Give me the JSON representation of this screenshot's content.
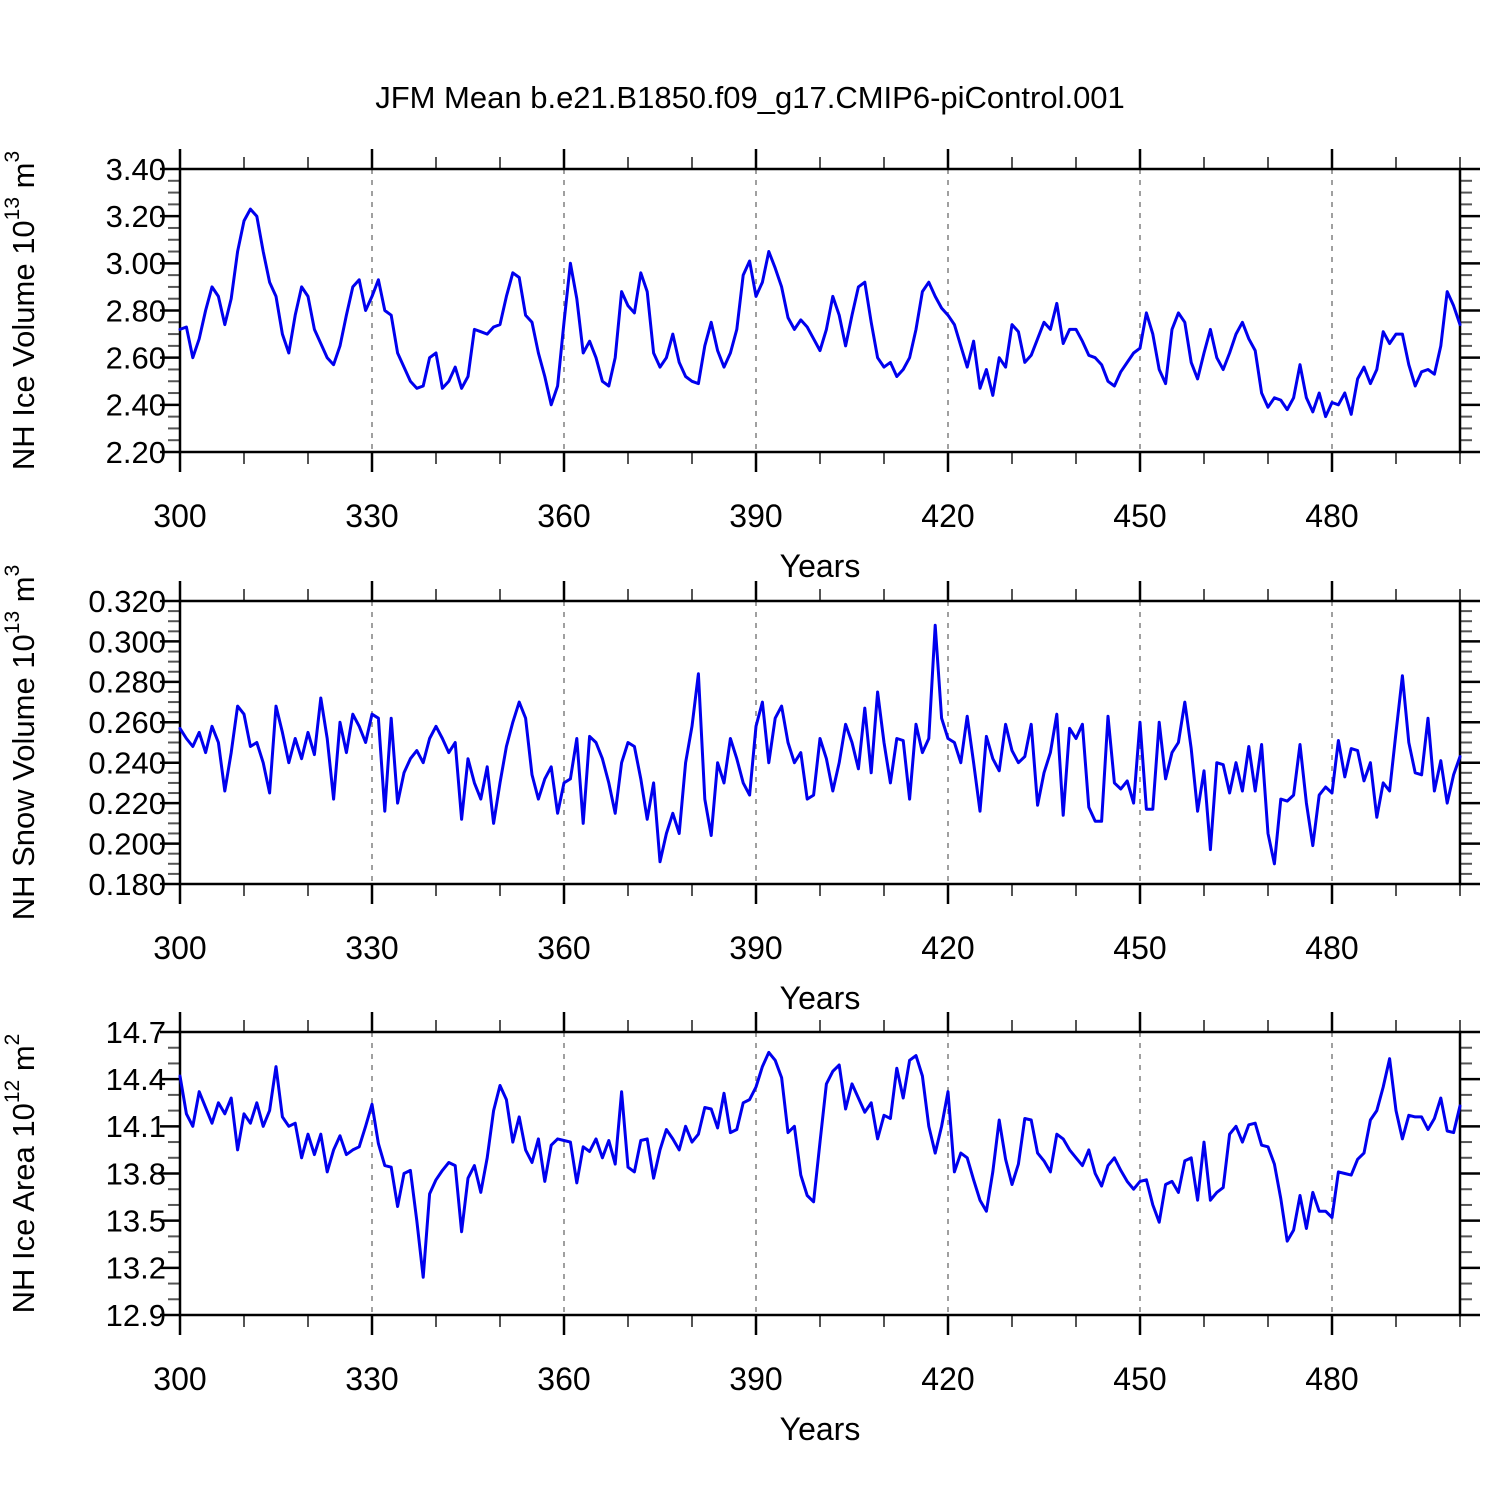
{
  "title": "JFM Mean b.e21.B1850.f09_g17.CMIP6-piControl.001",
  "line_color": "#0000ee",
  "frame_color": "#000000",
  "grid_color": "#808080",
  "minor_tick_color": "#555555",
  "axis": {
    "xlabel": "Years",
    "xlim": [
      300,
      500
    ],
    "x_major_ticks": [
      300,
      330,
      360,
      390,
      420,
      450,
      480
    ],
    "x_gridlines": [
      330,
      360,
      390,
      420,
      450,
      480
    ],
    "x_minor_step": 10
  },
  "chart_data": [
    {
      "type": "line",
      "ylabel_parts": [
        "NH Ice Volume 10",
        "13",
        " m",
        "3"
      ],
      "ylim": [
        2.2,
        3.4
      ],
      "ytick_step": 0.2,
      "ytick_labels": [
        "2.20",
        "2.40",
        "2.60",
        "2.80",
        "3.00",
        "3.20",
        "3.40"
      ],
      "y_minor_divisions": 4,
      "x_start": 300,
      "x_step": 1,
      "values": [
        2.72,
        2.73,
        2.6,
        2.68,
        2.8,
        2.9,
        2.86,
        2.74,
        2.85,
        3.05,
        3.18,
        3.23,
        3.2,
        3.05,
        2.92,
        2.86,
        2.7,
        2.62,
        2.78,
        2.9,
        2.86,
        2.72,
        2.66,
        2.6,
        2.57,
        2.65,
        2.78,
        2.9,
        2.93,
        2.8,
        2.86,
        2.93,
        2.8,
        2.78,
        2.62,
        2.56,
        2.5,
        2.47,
        2.48,
        2.6,
        2.62,
        2.47,
        2.5,
        2.56,
        2.47,
        2.52,
        2.72,
        2.71,
        2.7,
        2.73,
        2.74,
        2.86,
        2.96,
        2.94,
        2.78,
        2.75,
        2.62,
        2.52,
        2.4,
        2.48,
        2.75,
        3.0,
        2.85,
        2.62,
        2.67,
        2.6,
        2.5,
        2.48,
        2.6,
        2.88,
        2.82,
        2.79,
        2.96,
        2.88,
        2.62,
        2.56,
        2.6,
        2.7,
        2.58,
        2.52,
        2.5,
        2.49,
        2.65,
        2.75,
        2.63,
        2.56,
        2.62,
        2.72,
        2.95,
        3.01,
        2.86,
        2.92,
        3.05,
        2.98,
        2.9,
        2.77,
        2.72,
        2.76,
        2.73,
        2.68,
        2.63,
        2.72,
        2.86,
        2.78,
        2.65,
        2.78,
        2.9,
        2.92,
        2.75,
        2.6,
        2.56,
        2.58,
        2.52,
        2.55,
        2.6,
        2.72,
        2.88,
        2.92,
        2.86,
        2.81,
        2.78,
        2.74,
        2.65,
        2.56,
        2.67,
        2.47,
        2.55,
        2.44,
        2.6,
        2.56,
        2.74,
        2.71,
        2.58,
        2.61,
        2.68,
        2.75,
        2.72,
        2.83,
        2.66,
        2.72,
        2.72,
        2.67,
        2.61,
        2.6,
        2.57,
        2.5,
        2.48,
        2.54,
        2.58,
        2.62,
        2.64,
        2.79,
        2.7,
        2.55,
        2.49,
        2.72,
        2.79,
        2.75,
        2.58,
        2.51,
        2.62,
        2.72,
        2.6,
        2.55,
        2.62,
        2.7,
        2.75,
        2.68,
        2.63,
        2.45,
        2.39,
        2.43,
        2.42,
        2.38,
        2.43,
        2.57,
        2.43,
        2.37,
        2.45,
        2.35,
        2.41,
        2.4,
        2.45,
        2.36,
        2.51,
        2.56,
        2.49,
        2.55,
        2.71,
        2.66,
        2.7,
        2.7,
        2.57,
        2.48,
        2.54,
        2.55,
        2.53,
        2.65,
        2.88,
        2.82,
        2.74
      ]
    },
    {
      "type": "line",
      "ylabel_parts": [
        "NH Snow Volume 10",
        "13",
        " m",
        "3"
      ],
      "ylim": [
        0.18,
        0.32
      ],
      "ytick_step": 0.02,
      "ytick_labels": [
        "0.180",
        "0.200",
        "0.220",
        "0.240",
        "0.260",
        "0.280",
        "0.300",
        "0.320"
      ],
      "y_minor_divisions": 4,
      "x_start": 300,
      "x_step": 1,
      "values": [
        0.257,
        0.252,
        0.248,
        0.255,
        0.245,
        0.258,
        0.25,
        0.226,
        0.245,
        0.268,
        0.264,
        0.248,
        0.25,
        0.24,
        0.225,
        0.268,
        0.255,
        0.24,
        0.252,
        0.242,
        0.255,
        0.244,
        0.272,
        0.252,
        0.222,
        0.26,
        0.245,
        0.264,
        0.258,
        0.25,
        0.264,
        0.262,
        0.216,
        0.262,
        0.22,
        0.235,
        0.242,
        0.246,
        0.24,
        0.252,
        0.258,
        0.252,
        0.245,
        0.25,
        0.212,
        0.242,
        0.23,
        0.222,
        0.238,
        0.21,
        0.23,
        0.248,
        0.26,
        0.27,
        0.262,
        0.234,
        0.222,
        0.232,
        0.238,
        0.215,
        0.23,
        0.232,
        0.252,
        0.21,
        0.253,
        0.25,
        0.242,
        0.23,
        0.215,
        0.24,
        0.25,
        0.248,
        0.232,
        0.212,
        0.23,
        0.191,
        0.205,
        0.215,
        0.205,
        0.24,
        0.258,
        0.284,
        0.222,
        0.204,
        0.24,
        0.23,
        0.252,
        0.242,
        0.23,
        0.224,
        0.258,
        0.27,
        0.24,
        0.262,
        0.268,
        0.25,
        0.24,
        0.245,
        0.222,
        0.224,
        0.252,
        0.242,
        0.226,
        0.24,
        0.259,
        0.25,
        0.237,
        0.267,
        0.235,
        0.275,
        0.25,
        0.23,
        0.252,
        0.251,
        0.222,
        0.259,
        0.245,
        0.252,
        0.308,
        0.262,
        0.252,
        0.25,
        0.24,
        0.263,
        0.24,
        0.216,
        0.253,
        0.242,
        0.236,
        0.259,
        0.246,
        0.24,
        0.243,
        0.259,
        0.219,
        0.235,
        0.245,
        0.264,
        0.214,
        0.257,
        0.252,
        0.259,
        0.218,
        0.211,
        0.211,
        0.263,
        0.23,
        0.227,
        0.231,
        0.22,
        0.26,
        0.217,
        0.217,
        0.26,
        0.232,
        0.245,
        0.25,
        0.27,
        0.247,
        0.216,
        0.236,
        0.197,
        0.24,
        0.239,
        0.225,
        0.24,
        0.226,
        0.248,
        0.226,
        0.249,
        0.205,
        0.19,
        0.222,
        0.221,
        0.224,
        0.249,
        0.22,
        0.199,
        0.224,
        0.228,
        0.225,
        0.251,
        0.233,
        0.247,
        0.246,
        0.231,
        0.24,
        0.213,
        0.23,
        0.226,
        0.255,
        0.283,
        0.25,
        0.235,
        0.234,
        0.262,
        0.226,
        0.241,
        0.22,
        0.234,
        0.243
      ]
    },
    {
      "type": "line",
      "ylabel_parts": [
        "NH Ice Area 10",
        "12",
        " m",
        "2"
      ],
      "ylim": [
        12.9,
        14.7
      ],
      "ytick_step": 0.3,
      "ytick_labels": [
        "12.9",
        "13.2",
        "13.5",
        "13.8",
        "14.1",
        "14.4",
        "14.7"
      ],
      "y_minor_divisions": 3,
      "x_start": 300,
      "x_step": 1,
      "values": [
        14.42,
        14.18,
        14.1,
        14.32,
        14.22,
        14.12,
        14.25,
        14.18,
        14.28,
        13.95,
        14.18,
        14.12,
        14.25,
        14.1,
        14.2,
        14.48,
        14.16,
        14.1,
        14.12,
        13.9,
        14.05,
        13.92,
        14.05,
        13.81,
        13.95,
        14.04,
        13.92,
        13.95,
        13.97,
        14.1,
        14.24,
        13.99,
        13.85,
        13.84,
        13.59,
        13.8,
        13.82,
        13.5,
        13.14,
        13.67,
        13.76,
        13.82,
        13.87,
        13.85,
        13.43,
        13.77,
        13.85,
        13.68,
        13.9,
        14.2,
        14.36,
        14.27,
        14.0,
        14.16,
        13.95,
        13.87,
        14.02,
        13.75,
        13.98,
        14.02,
        14.01,
        14.0,
        13.74,
        13.97,
        13.94,
        14.02,
        13.9,
        14.01,
        13.86,
        14.32,
        13.84,
        13.81,
        14.01,
        14.02,
        13.77,
        13.95,
        14.08,
        14.02,
        13.95,
        14.1,
        14.0,
        14.05,
        14.22,
        14.21,
        14.09,
        14.31,
        14.06,
        14.08,
        14.25,
        14.27,
        14.35,
        14.48,
        14.57,
        14.52,
        14.41,
        14.06,
        14.1,
        13.79,
        13.66,
        13.62,
        14.0,
        14.37,
        14.45,
        14.49,
        14.21,
        14.37,
        14.28,
        14.19,
        14.25,
        14.02,
        14.17,
        14.15,
        14.47,
        14.28,
        14.52,
        14.55,
        14.42,
        14.1,
        13.93,
        14.1,
        14.32,
        13.81,
        13.93,
        13.9,
        13.76,
        13.63,
        13.56,
        13.81,
        14.14,
        13.89,
        13.73,
        13.86,
        14.15,
        14.14,
        13.93,
        13.88,
        13.81,
        14.05,
        14.02,
        13.95,
        13.9,
        13.85,
        13.95,
        13.8,
        13.72,
        13.85,
        13.9,
        13.82,
        13.75,
        13.7,
        13.75,
        13.76,
        13.6,
        13.49,
        13.73,
        13.75,
        13.68,
        13.88,
        13.9,
        13.63,
        14.0,
        13.63,
        13.68,
        13.71,
        14.05,
        14.1,
        14.0,
        14.11,
        14.12,
        13.98,
        13.97,
        13.86,
        13.64,
        13.37,
        13.44,
        13.66,
        13.45,
        13.68,
        13.56,
        13.56,
        13.52,
        13.81,
        13.8,
        13.79,
        13.89,
        13.93,
        14.14,
        14.2,
        14.35,
        14.53,
        14.2,
        14.02,
        14.17,
        14.16,
        14.16,
        14.08,
        14.15,
        14.28,
        14.07,
        14.06,
        14.23
      ]
    }
  ]
}
